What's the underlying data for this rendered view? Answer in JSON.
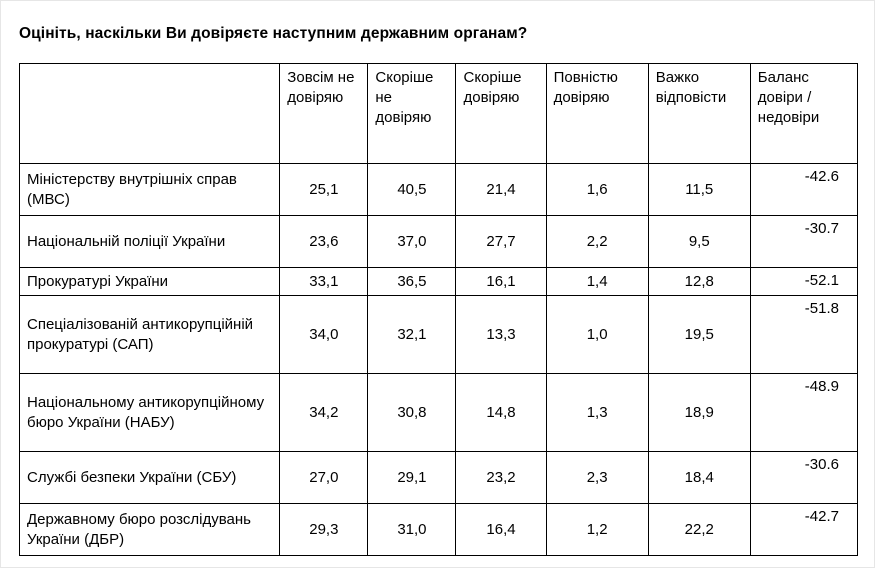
{
  "title": "Оцініть, наскільки Ви довіряєте наступним державним органам?",
  "table": {
    "headers": {
      "corner": "",
      "col1": "Зовсім не довіряю",
      "col2": "Скоріше не довіряю",
      "col3": "Скоріше довіряю",
      "col4": "Повністю довіряю",
      "col5": "Важко відповісти",
      "col6": "Баланс довіри / недовіри"
    },
    "rows": [
      {
        "label": "Міністерству внутрішніх справ (МВС)",
        "values": [
          "25,1",
          "40,5",
          "21,4",
          "1,6",
          "11,5"
        ],
        "balance": "-42.6"
      },
      {
        "label": "Національній поліції України",
        "values": [
          "23,6",
          "37,0",
          "27,7",
          "2,2",
          "9,5"
        ],
        "balance": "-30.7"
      },
      {
        "label": "Прокуратурі України",
        "values": [
          "33,1",
          "36,5",
          "16,1",
          "1,4",
          "12,8"
        ],
        "balance": "-52.1"
      },
      {
        "label": "Спеціалізованій антикорупційній прокуратурі (САП)",
        "values": [
          "34,0",
          "32,1",
          "13,3",
          "1,0",
          "19,5"
        ],
        "balance": "-51.8"
      },
      {
        "label": "Національному антикорупційному бюро України (НАБУ)",
        "values": [
          "34,2",
          "30,8",
          "14,8",
          "1,3",
          "18,9"
        ],
        "balance": "-48.9"
      },
      {
        "label": "Службі безпеки України (СБУ)",
        "values": [
          "27,0",
          "29,1",
          "23,2",
          "2,3",
          "18,4"
        ],
        "balance": "-30.6"
      },
      {
        "label": "Державному бюро розслідувань України (ДБР)",
        "values": [
          "29,3",
          "31,0",
          "16,4",
          "1,2",
          "22,2"
        ],
        "balance": "-42.7"
      }
    ]
  },
  "chart_data": {
    "type": "table",
    "title": "Оцініть, наскільки Ви довіряєте наступним державним органам?",
    "categories": [
      "Міністерству внутрішніх справ (МВС)",
      "Національній поліції України",
      "Прокуратурі України",
      "Спеціалізованій антикорупційній прокуратурі (САП)",
      "Національному антикорупційному бюро України (НАБУ)",
      "Службі безпеки України (СБУ)",
      "Державному бюро розслідувань України (ДБР)"
    ],
    "series": [
      {
        "name": "Зовсім не довіряю",
        "values": [
          25.1,
          23.6,
          33.1,
          34.0,
          34.2,
          27.0,
          29.3
        ]
      },
      {
        "name": "Скоріше не довіряю",
        "values": [
          40.5,
          37.0,
          36.5,
          32.1,
          30.8,
          29.1,
          31.0
        ]
      },
      {
        "name": "Скоріше довіряю",
        "values": [
          21.4,
          27.7,
          16.1,
          13.3,
          14.8,
          23.2,
          16.4
        ]
      },
      {
        "name": "Повністю довіряю",
        "values": [
          1.6,
          2.2,
          1.4,
          1.0,
          1.3,
          2.3,
          1.2
        ]
      },
      {
        "name": "Важко відповісти",
        "values": [
          11.5,
          9.5,
          12.8,
          19.5,
          18.9,
          18.4,
          22.2
        ]
      },
      {
        "name": "Баланс довіри / недовіри",
        "values": [
          -42.6,
          -30.7,
          -52.1,
          -51.8,
          -48.9,
          -30.6,
          -42.7
        ]
      }
    ],
    "layout": {
      "grid": true,
      "units": "percent"
    }
  }
}
